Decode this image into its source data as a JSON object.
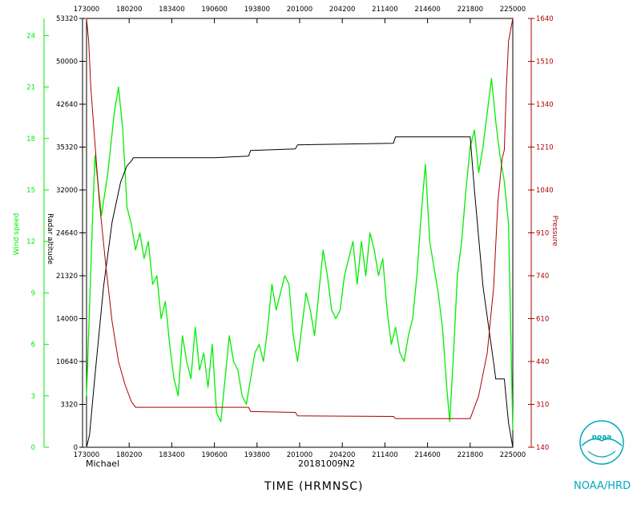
{
  "colors": {
    "wind": "#00ee00",
    "altitude": "#000000",
    "pressure": "#aa0000",
    "logo": "#00aabb"
  },
  "footer": {
    "storm": "Michael",
    "flight": "20181009N2",
    "x_title": "TIME (HRMNSC)",
    "agency": "NOAA/HRD",
    "logo_text": "noaa",
    "logo_icon": "noaa-seagull-logo"
  },
  "chart_data": {
    "type": "line",
    "x_axis": {
      "label": "TIME (HRMNSC)",
      "ticks": [
        "173000",
        "180200",
        "183400",
        "190600",
        "193800",
        "201000",
        "204200",
        "211400",
        "214600",
        "221800",
        "225000"
      ]
    },
    "axes": {
      "wind": {
        "label": "Wind speed",
        "range": [
          0,
          25
        ],
        "ticks": [
          "0",
          "3",
          "6",
          "9",
          "12",
          "15",
          "18",
          "21",
          "24"
        ],
        "tick_values": [
          0,
          3,
          6,
          9,
          12,
          15,
          18,
          21,
          24
        ]
      },
      "altitude": {
        "label": "Radar altitude",
        "range": [
          0,
          53320
        ],
        "ticks": [
          "0",
          "3320",
          "10640",
          "14000",
          "21320",
          "24640",
          "32000",
          "35320",
          "42640",
          "50000",
          "53320"
        ]
      },
      "pressure": {
        "label": "Pressure",
        "range": [
          140,
          1640
        ],
        "ticks": [
          "140",
          "310",
          "440",
          "610",
          "740",
          "910",
          "1040",
          "1210",
          "1340",
          "1510",
          "1640"
        ]
      }
    },
    "series": [
      {
        "name": "Wind speed",
        "axis": "wind",
        "points": [
          [
            0.0,
            3
          ],
          [
            0.015,
            14
          ],
          [
            0.02,
            17
          ],
          [
            0.035,
            13.5
          ],
          [
            0.05,
            16
          ],
          [
            0.065,
            19.5
          ],
          [
            0.075,
            21
          ],
          [
            0.085,
            18.5
          ],
          [
            0.095,
            14
          ],
          [
            0.105,
            13
          ],
          [
            0.115,
            11.5
          ],
          [
            0.125,
            12.5
          ],
          [
            0.135,
            11
          ],
          [
            0.145,
            12
          ],
          [
            0.155,
            9.5
          ],
          [
            0.165,
            10
          ],
          [
            0.175,
            7.5
          ],
          [
            0.185,
            8.5
          ],
          [
            0.195,
            6
          ],
          [
            0.205,
            4
          ],
          [
            0.215,
            3
          ],
          [
            0.225,
            6.5
          ],
          [
            0.235,
            5
          ],
          [
            0.245,
            4
          ],
          [
            0.255,
            7
          ],
          [
            0.265,
            4.5
          ],
          [
            0.275,
            5.5
          ],
          [
            0.285,
            3.5
          ],
          [
            0.295,
            6
          ],
          [
            0.305,
            2
          ],
          [
            0.315,
            1.5
          ],
          [
            0.325,
            4
          ],
          [
            0.335,
            6.5
          ],
          [
            0.345,
            5
          ],
          [
            0.355,
            4.5
          ],
          [
            0.365,
            3
          ],
          [
            0.375,
            2.5
          ],
          [
            0.385,
            4
          ],
          [
            0.395,
            5.5
          ],
          [
            0.405,
            6
          ],
          [
            0.415,
            5
          ],
          [
            0.425,
            7
          ],
          [
            0.435,
            9.5
          ],
          [
            0.445,
            8
          ],
          [
            0.455,
            9
          ],
          [
            0.465,
            10
          ],
          [
            0.475,
            9.5
          ],
          [
            0.485,
            6.5
          ],
          [
            0.495,
            5
          ],
          [
            0.505,
            7
          ],
          [
            0.515,
            9
          ],
          [
            0.525,
            8
          ],
          [
            0.535,
            6.5
          ],
          [
            0.545,
            9
          ],
          [
            0.555,
            11.5
          ],
          [
            0.565,
            10
          ],
          [
            0.575,
            8
          ],
          [
            0.585,
            7.5
          ],
          [
            0.595,
            8
          ],
          [
            0.605,
            10
          ],
          [
            0.615,
            11
          ],
          [
            0.625,
            12
          ],
          [
            0.635,
            9.5
          ],
          [
            0.645,
            12
          ],
          [
            0.655,
            10
          ],
          [
            0.665,
            12.5
          ],
          [
            0.675,
            11.5
          ],
          [
            0.685,
            10
          ],
          [
            0.695,
            11
          ],
          [
            0.705,
            8
          ],
          [
            0.715,
            6
          ],
          [
            0.725,
            7
          ],
          [
            0.735,
            5.5
          ],
          [
            0.745,
            5
          ],
          [
            0.755,
            6.5
          ],
          [
            0.765,
            7.5
          ],
          [
            0.775,
            10
          ],
          [
            0.785,
            13.5
          ],
          [
            0.795,
            16.5
          ],
          [
            0.805,
            12
          ],
          [
            0.815,
            10.5
          ],
          [
            0.825,
            9
          ],
          [
            0.835,
            7
          ],
          [
            0.845,
            3.5
          ],
          [
            0.852,
            1.5
          ],
          [
            0.86,
            5
          ],
          [
            0.87,
            10
          ],
          [
            0.88,
            12
          ],
          [
            0.89,
            15
          ],
          [
            0.9,
            17.5
          ],
          [
            0.91,
            18.5
          ],
          [
            0.92,
            16
          ],
          [
            0.93,
            17.5
          ],
          [
            0.94,
            19.5
          ],
          [
            0.95,
            21.5
          ],
          [
            0.96,
            19
          ],
          [
            0.97,
            17
          ],
          [
            0.98,
            15.5
          ],
          [
            0.99,
            13
          ],
          [
            1.0,
            1
          ]
        ]
      },
      {
        "name": "Radar altitude",
        "axis": "altitude",
        "points": [
          [
            0.0,
            0
          ],
          [
            0.007,
            1500
          ],
          [
            0.02,
            9000
          ],
          [
            0.04,
            20000
          ],
          [
            0.06,
            28000
          ],
          [
            0.08,
            33000
          ],
          [
            0.095,
            35000
          ],
          [
            0.105,
            35600
          ],
          [
            0.11,
            36000
          ],
          [
            0.3,
            36000
          ],
          [
            0.38,
            36200
          ],
          [
            0.385,
            36900
          ],
          [
            0.49,
            37100
          ],
          [
            0.495,
            37600
          ],
          [
            0.72,
            37800
          ],
          [
            0.725,
            38600
          ],
          [
            0.9,
            38600
          ],
          [
            0.91,
            32000
          ],
          [
            0.93,
            20000
          ],
          [
            0.955,
            10500
          ],
          [
            0.96,
            8500
          ],
          [
            0.98,
            8500
          ],
          [
            0.99,
            3000
          ],
          [
            1.0,
            0
          ]
        ]
      },
      {
        "name": "Pressure",
        "axis": "pressure",
        "points": [
          [
            0.0,
            1640
          ],
          [
            0.005,
            1560
          ],
          [
            0.01,
            1400
          ],
          [
            0.02,
            1200
          ],
          [
            0.03,
            1000
          ],
          [
            0.045,
            780
          ],
          [
            0.06,
            580
          ],
          [
            0.075,
            440
          ],
          [
            0.09,
            360
          ],
          [
            0.105,
            300
          ],
          [
            0.115,
            280
          ],
          [
            0.3,
            280
          ],
          [
            0.38,
            280
          ],
          [
            0.385,
            265
          ],
          [
            0.49,
            262
          ],
          [
            0.495,
            250
          ],
          [
            0.72,
            248
          ],
          [
            0.725,
            240
          ],
          [
            0.9,
            240
          ],
          [
            0.92,
            320
          ],
          [
            0.94,
            470
          ],
          [
            0.955,
            700
          ],
          [
            0.965,
            1000
          ],
          [
            0.975,
            1150
          ],
          [
            0.98,
            1180
          ],
          [
            0.985,
            1400
          ],
          [
            0.99,
            1560
          ],
          [
            1.0,
            1640
          ]
        ]
      }
    ]
  }
}
